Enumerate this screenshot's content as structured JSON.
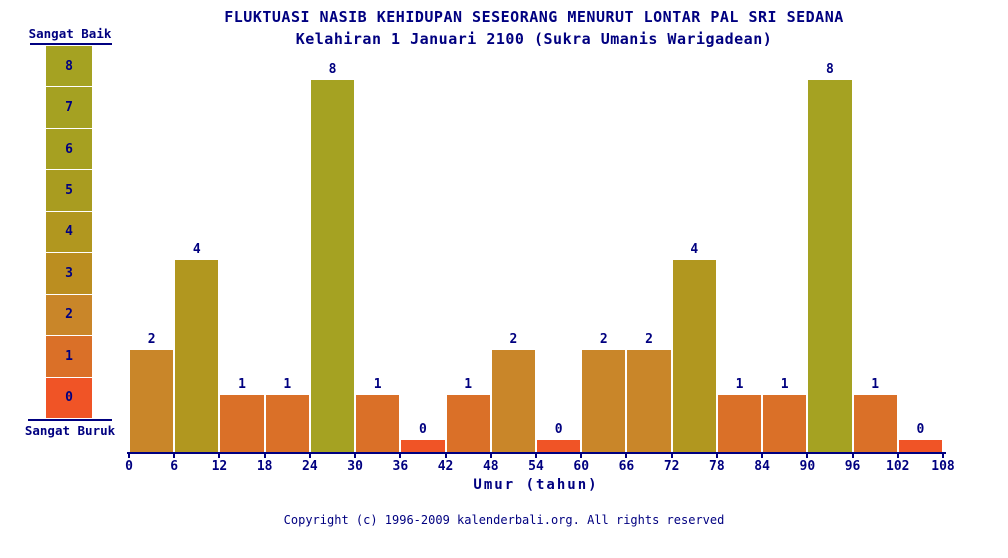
{
  "title": "FLUKTUASI NASIB KEHIDUPAN SESEORANG MENURUT LONTAR PAL SRI SEDANA",
  "subtitle": "Kelahiran 1 Januari 2100 (Sukra Umanis Warigadean)",
  "legend": {
    "top_label": "Sangat Baik",
    "bottom_label": "Sangat Buruk",
    "levels": [
      8,
      7,
      6,
      5,
      4,
      3,
      2,
      1,
      0
    ]
  },
  "chart_data": {
    "type": "bar",
    "title": "FLUKTUASI NASIB KEHIDUPAN SESEORANG MENURUT LONTAR PAL SRI SEDANA",
    "subtitle": "Kelahiran 1 Januari 2100 (Sukra Umanis Warigadean)",
    "xlabel": "Umur (tahun)",
    "x_ticks": [
      0,
      6,
      12,
      18,
      24,
      30,
      36,
      42,
      48,
      54,
      60,
      66,
      72,
      78,
      84,
      90,
      96,
      102,
      108
    ],
    "bin_width_years": 6,
    "values": [
      2,
      4,
      1,
      1,
      8,
      1,
      0,
      1,
      2,
      0,
      2,
      2,
      4,
      1,
      1,
      8,
      1,
      0
    ],
    "ylim": [
      0,
      8
    ],
    "scale_labels": {
      "max": "Sangat Baik",
      "min": "Sangat Buruk"
    },
    "value_colors": {
      "0": "#f05426",
      "1": "#da7028",
      "2": "#c98629",
      "3": "#bb8e20",
      "4": "#b1971f",
      "5": "#a99c20",
      "6": "#a6a021",
      "7": "#a5a122",
      "8": "#a5a222"
    },
    "axis_color": "#000080",
    "grid": false,
    "legend_position": "left"
  },
  "footer": {
    "copyright": "Copyright (c) 1996-2009 kalenderbali.org. All rights reserved"
  },
  "colors": {
    "text": "#000080",
    "background": "#ffffff"
  }
}
